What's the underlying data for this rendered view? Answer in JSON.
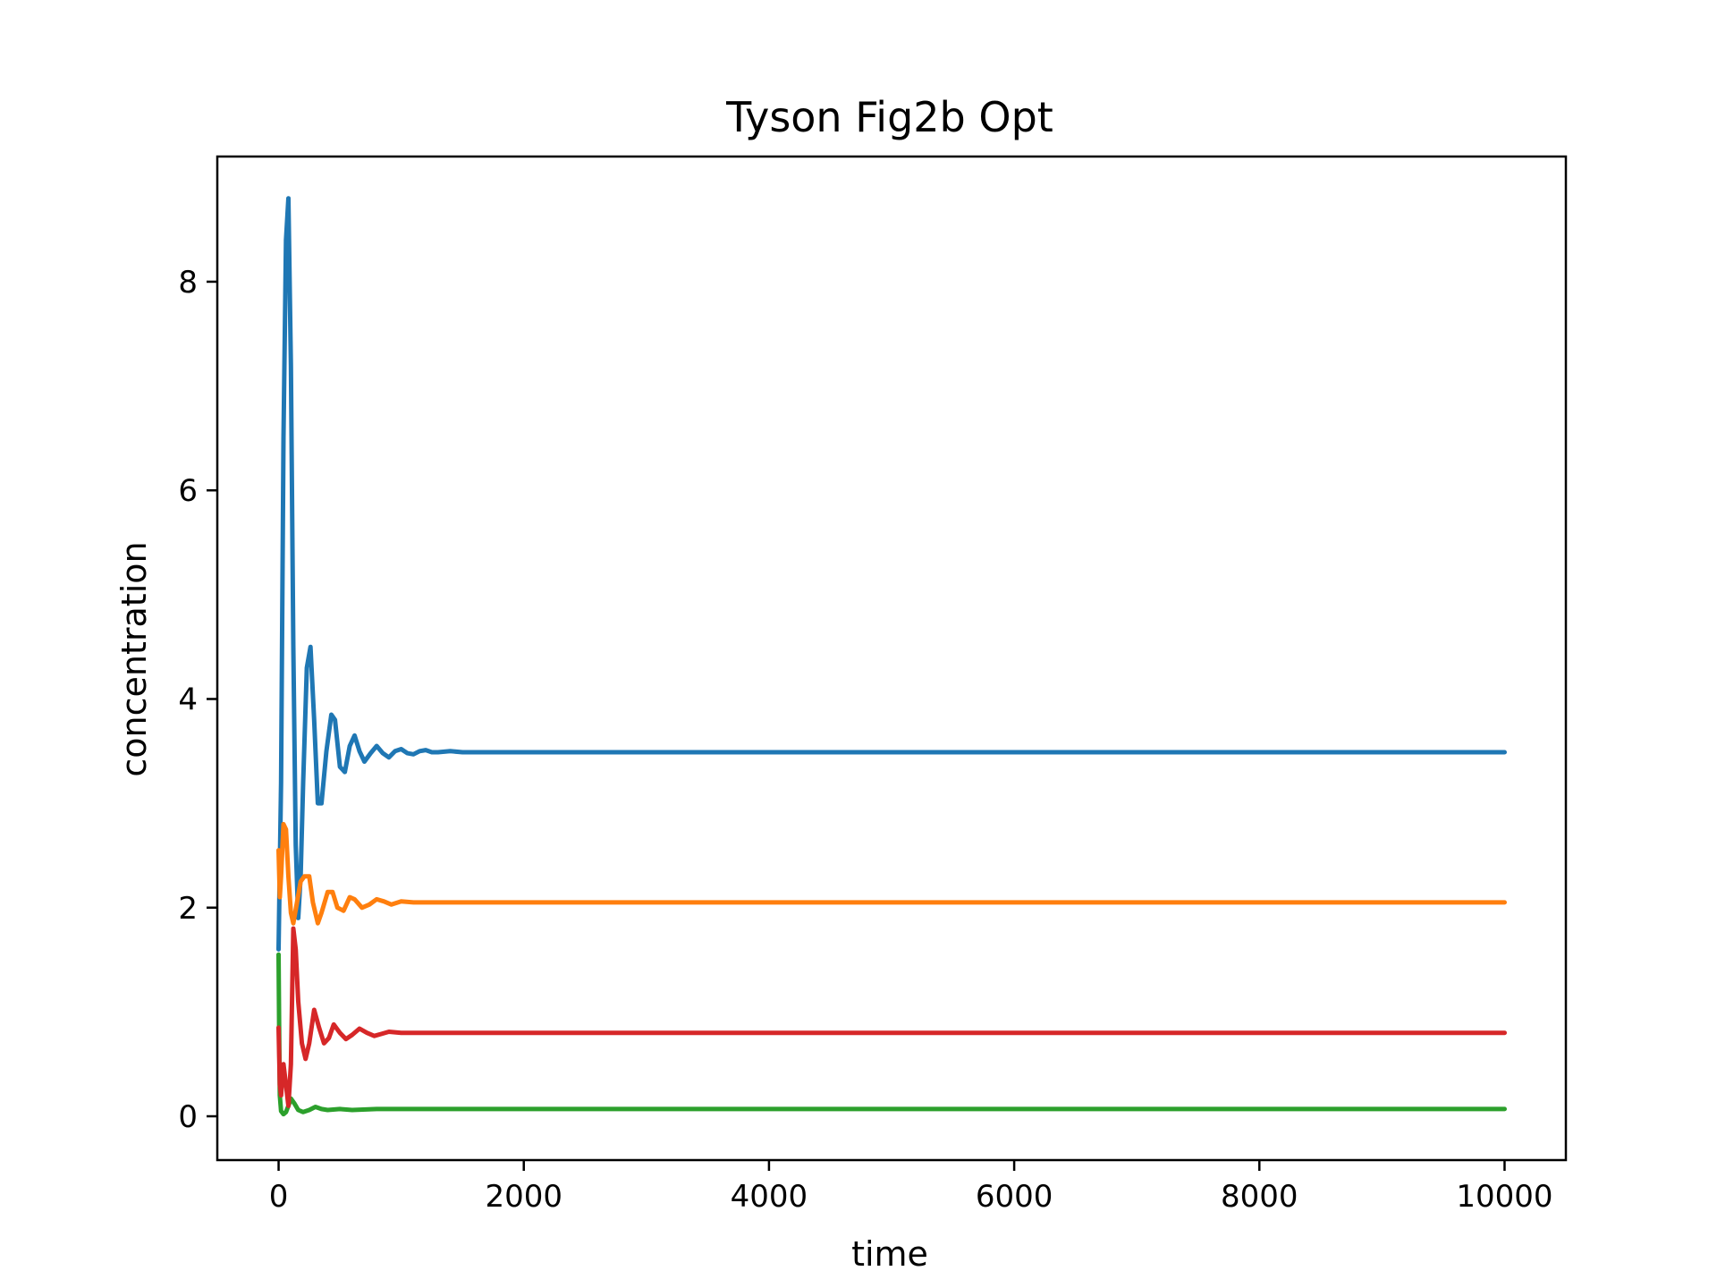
{
  "chart_data": {
    "type": "line",
    "title": "Tyson Fig2b Opt",
    "xlabel": "time",
    "ylabel": "concentration",
    "xlim": [
      -500,
      10500
    ],
    "ylim": [
      -0.42,
      9.2
    ],
    "xticks": [
      0,
      2000,
      4000,
      6000,
      8000,
      10000
    ],
    "yticks": [
      0,
      2,
      4,
      6,
      8
    ],
    "grid": false,
    "legend": "none",
    "series": [
      {
        "color": "#1f77b4",
        "x": [
          0,
          20,
          40,
          60,
          80,
          100,
          120,
          140,
          160,
          180,
          200,
          230,
          260,
          290,
          320,
          350,
          390,
          430,
          460,
          500,
          540,
          580,
          620,
          660,
          700,
          750,
          800,
          850,
          900,
          950,
          1000,
          1050,
          1100,
          1150,
          1200,
          1250,
          1300,
          1400,
          1500,
          1700,
          2000,
          4000,
          6000,
          8000,
          10000
        ],
        "y": [
          1.6,
          3.2,
          6.5,
          8.4,
          8.8,
          7.2,
          4.5,
          2.6,
          1.9,
          2.3,
          3.2,
          4.3,
          4.5,
          3.8,
          3.0,
          3.0,
          3.5,
          3.85,
          3.8,
          3.35,
          3.3,
          3.55,
          3.65,
          3.5,
          3.4,
          3.48,
          3.55,
          3.48,
          3.44,
          3.5,
          3.52,
          3.48,
          3.47,
          3.5,
          3.51,
          3.49,
          3.49,
          3.5,
          3.49,
          3.49,
          3.49,
          3.49,
          3.49,
          3.49,
          3.49
        ]
      },
      {
        "color": "#ff7f0e",
        "x": [
          0,
          10,
          20,
          40,
          60,
          80,
          100,
          120,
          150,
          180,
          210,
          250,
          280,
          320,
          350,
          400,
          440,
          480,
          530,
          580,
          620,
          680,
          740,
          800,
          860,
          920,
          1000,
          1100,
          1200,
          1300,
          1400,
          2000,
          4000,
          6000,
          8000,
          10000
        ],
        "y": [
          2.55,
          2.1,
          2.3,
          2.8,
          2.75,
          2.3,
          1.95,
          1.85,
          2.05,
          2.25,
          2.3,
          2.3,
          2.05,
          1.85,
          1.95,
          2.15,
          2.15,
          2.0,
          1.97,
          2.1,
          2.08,
          2.0,
          2.03,
          2.08,
          2.06,
          2.03,
          2.06,
          2.05,
          2.05,
          2.05,
          2.05,
          2.05,
          2.05,
          2.05,
          2.05,
          2.05
        ]
      },
      {
        "color": "#2ca02c",
        "x": [
          0,
          5,
          10,
          20,
          40,
          60,
          80,
          100,
          130,
          160,
          200,
          250,
          300,
          350,
          400,
          500,
          600,
          800,
          1000,
          2000,
          4000,
          6000,
          8000,
          10000
        ],
        "y": [
          1.55,
          0.8,
          0.2,
          0.05,
          0.02,
          0.04,
          0.1,
          0.17,
          0.12,
          0.06,
          0.04,
          0.06,
          0.09,
          0.07,
          0.06,
          0.07,
          0.06,
          0.07,
          0.07,
          0.07,
          0.07,
          0.07,
          0.07,
          0.07
        ]
      },
      {
        "color": "#d62728",
        "x": [
          0,
          10,
          20,
          40,
          60,
          80,
          100,
          120,
          140,
          160,
          190,
          220,
          250,
          290,
          330,
          370,
          410,
          450,
          500,
          550,
          600,
          660,
          720,
          780,
          840,
          900,
          1000,
          1100,
          1200,
          1300,
          1400,
          2000,
          4000,
          6000,
          8000,
          10000
        ],
        "y": [
          0.85,
          0.3,
          0.2,
          0.5,
          0.3,
          0.1,
          0.5,
          1.8,
          1.6,
          1.1,
          0.7,
          0.55,
          0.7,
          1.02,
          0.85,
          0.7,
          0.75,
          0.88,
          0.8,
          0.74,
          0.78,
          0.84,
          0.8,
          0.77,
          0.79,
          0.81,
          0.8,
          0.8,
          0.8,
          0.8,
          0.8,
          0.8,
          0.8,
          0.8,
          0.8,
          0.8
        ]
      }
    ]
  }
}
